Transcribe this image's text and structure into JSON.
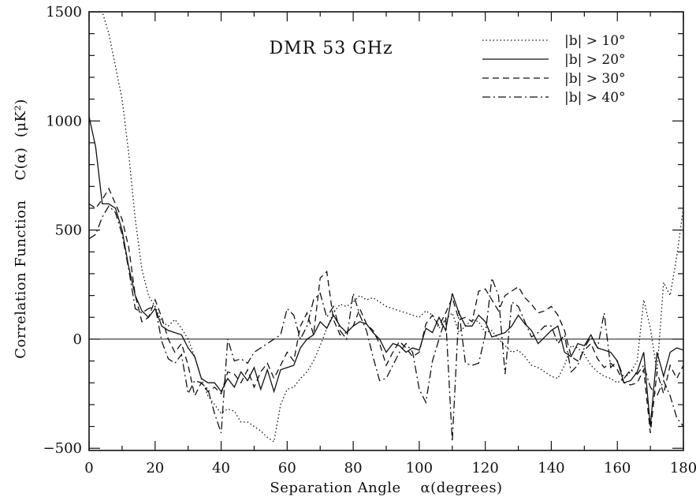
{
  "chart_data": {
    "type": "line",
    "title": "DMR 53 GHz",
    "xlabel": "Separation Angle    α(degrees)",
    "ylabel": "Correlation Function    C(α)  (μK²)",
    "xlim": [
      0,
      180
    ],
    "ylim": [
      -510,
      1500
    ],
    "xticks": [
      0,
      20,
      40,
      60,
      80,
      100,
      120,
      140,
      160,
      180
    ],
    "yticks": [
      -500,
      0,
      500,
      1000,
      1500
    ],
    "xtick_labels": [
      "0",
      "20",
      "40",
      "60",
      "80",
      "100",
      "120",
      "140",
      "160",
      "180"
    ],
    "ytick_labels": [
      "−500",
      "0",
      "500",
      "1000",
      "1500"
    ],
    "reference_line_y": 0,
    "grid": false,
    "legend_position": "top-right",
    "series": [
      {
        "name": "|b| >  10°",
        "dash": "dotted",
        "x": [
          2,
          4,
          6,
          8,
          10,
          12,
          14,
          16,
          18,
          20,
          22,
          24,
          26,
          28,
          30,
          32,
          34,
          36,
          38,
          40,
          42,
          44,
          46,
          48,
          50,
          52,
          54,
          56,
          58,
          60,
          62,
          64,
          66,
          68,
          70,
          72,
          74,
          76,
          78,
          80,
          82,
          84,
          86,
          88,
          90,
          92,
          94,
          96,
          98,
          100,
          102,
          104,
          106,
          108,
          110,
          112,
          114,
          116,
          118,
          120,
          122,
          124,
          126,
          128,
          130,
          132,
          134,
          136,
          138,
          140,
          142,
          144,
          146,
          148,
          150,
          152,
          154,
          156,
          158,
          160,
          162,
          164,
          166,
          168,
          170,
          172,
          174,
          176,
          178,
          180
        ],
        "y": [
          1650,
          1500,
          1400,
          1250,
          1100,
          850,
          550,
          320,
          200,
          150,
          80,
          60,
          90,
          50,
          0,
          -80,
          -180,
          -260,
          -300,
          -340,
          -320,
          -330,
          -380,
          -380,
          -400,
          -420,
          -450,
          -470,
          -300,
          -230,
          -220,
          -180,
          -150,
          -100,
          -30,
          50,
          120,
          160,
          150,
          170,
          200,
          180,
          190,
          170,
          150,
          140,
          130,
          120,
          110,
          100,
          130,
          110,
          50,
          90,
          120,
          30,
          60,
          90,
          80,
          30,
          40,
          0,
          -30,
          -60,
          -50,
          -80,
          -120,
          -130,
          -150,
          -170,
          -180,
          -120,
          -30,
          -40,
          -70,
          -120,
          -150,
          -170,
          -180,
          -200,
          -180,
          -150,
          -100,
          180,
          50,
          -150,
          260,
          200,
          380,
          600
        ]
      },
      {
        "name": "|b| >  20°",
        "dash": "solid",
        "x": [
          0,
          2,
          4,
          6,
          8,
          10,
          12,
          14,
          16,
          18,
          20,
          22,
          24,
          26,
          28,
          30,
          32,
          34,
          36,
          38,
          40,
          42,
          44,
          46,
          48,
          50,
          52,
          54,
          56,
          58,
          60,
          62,
          64,
          66,
          68,
          70,
          72,
          74,
          76,
          78,
          80,
          82,
          84,
          86,
          88,
          90,
          92,
          94,
          96,
          98,
          100,
          102,
          104,
          106,
          108,
          110,
          112,
          114,
          116,
          118,
          120,
          122,
          124,
          126,
          128,
          130,
          132,
          134,
          136,
          138,
          140,
          142,
          144,
          146,
          148,
          150,
          152,
          154,
          156,
          158,
          160,
          162,
          164,
          166,
          168,
          170,
          172,
          174,
          176,
          178,
          180
        ],
        "y": [
          1020,
          880,
          620,
          620,
          600,
          500,
          330,
          200,
          130,
          100,
          140,
          60,
          40,
          30,
          20,
          -40,
          -80,
          -180,
          -200,
          -200,
          -240,
          -180,
          -220,
          -150,
          -190,
          -130,
          -230,
          -140,
          -240,
          -140,
          -130,
          -120,
          -40,
          0,
          20,
          80,
          50,
          110,
          60,
          30,
          60,
          80,
          70,
          30,
          0,
          -60,
          -20,
          -30,
          -60,
          -40,
          -50,
          50,
          30,
          100,
          40,
          210,
          120,
          60,
          60,
          110,
          80,
          10,
          20,
          30,
          60,
          110,
          70,
          40,
          -20,
          10,
          40,
          60,
          -60,
          -80,
          -20,
          -30,
          20,
          -40,
          -50,
          -60,
          -100,
          -200,
          -190,
          -150,
          -60,
          -400,
          -60,
          -170,
          -60,
          -40,
          -50
        ]
      },
      {
        "name": "|b| >  30°",
        "dash": "dashed",
        "x": [
          0,
          2,
          4,
          6,
          8,
          10,
          12,
          14,
          16,
          18,
          20,
          22,
          24,
          26,
          28,
          30,
          32,
          34,
          36,
          38,
          40,
          42,
          44,
          46,
          48,
          50,
          52,
          54,
          56,
          58,
          60,
          62,
          64,
          66,
          68,
          70,
          72,
          74,
          76,
          78,
          80,
          82,
          84,
          86,
          88,
          90,
          92,
          94,
          96,
          98,
          100,
          102,
          104,
          106,
          108,
          110,
          112,
          114,
          116,
          118,
          120,
          122,
          124,
          126,
          128,
          130,
          132,
          134,
          136,
          138,
          140,
          142,
          144,
          146,
          148,
          150,
          152,
          154,
          156,
          158,
          160,
          162,
          164,
          166,
          168,
          170,
          172,
          174,
          176,
          178,
          180
        ],
        "y": [
          620,
          600,
          640,
          690,
          620,
          550,
          420,
          200,
          80,
          100,
          180,
          100,
          0,
          -60,
          -20,
          -120,
          -260,
          -200,
          -240,
          -220,
          -250,
          -150,
          -160,
          -200,
          -140,
          -220,
          -150,
          -110,
          -180,
          -120,
          -60,
          -100,
          60,
          120,
          20,
          280,
          310,
          90,
          20,
          30,
          60,
          140,
          70,
          40,
          -20,
          -120,
          -60,
          -10,
          -40,
          -80,
          -60,
          70,
          110,
          60,
          120,
          190,
          90,
          100,
          80,
          220,
          230,
          180,
          130,
          200,
          220,
          240,
          190,
          160,
          120,
          130,
          150,
          110,
          40,
          -80,
          -100,
          -50,
          -20,
          -90,
          -130,
          -110,
          -140,
          -200,
          -210,
          -200,
          -140,
          -430,
          -150,
          -250,
          -120,
          -180,
          -120
        ]
      },
      {
        "name": "|b| >  40°",
        "dash": "dashdot",
        "x": [
          0,
          2,
          4,
          6,
          8,
          10,
          12,
          14,
          16,
          18,
          20,
          22,
          24,
          26,
          28,
          30,
          32,
          34,
          36,
          38,
          40,
          42,
          44,
          46,
          48,
          50,
          52,
          54,
          56,
          58,
          60,
          62,
          64,
          66,
          68,
          70,
          72,
          74,
          76,
          78,
          80,
          82,
          84,
          86,
          88,
          90,
          92,
          94,
          96,
          98,
          100,
          102,
          104,
          106,
          108,
          110,
          112,
          114,
          116,
          118,
          120,
          122,
          124,
          126,
          128,
          130,
          132,
          134,
          136,
          138,
          140,
          142,
          144,
          146,
          148,
          150,
          152,
          154,
          156,
          158,
          160,
          162,
          164,
          166,
          168,
          170,
          172,
          174,
          176,
          178,
          180
        ],
        "y": [
          460,
          480,
          560,
          610,
          580,
          480,
          320,
          140,
          120,
          140,
          150,
          -10,
          -90,
          -110,
          -70,
          -250,
          -190,
          -200,
          -230,
          -340,
          -430,
          0,
          -100,
          -90,
          -110,
          -60,
          -40,
          -20,
          0,
          20,
          140,
          110,
          0,
          60,
          180,
          210,
          100,
          150,
          40,
          0,
          210,
          110,
          40,
          -80,
          -190,
          -180,
          -120,
          -60,
          -20,
          -60,
          -230,
          -290,
          -100,
          0,
          100,
          -470,
          130,
          -110,
          -120,
          -110,
          20,
          280,
          200,
          -160,
          170,
          150,
          80,
          10,
          30,
          60,
          60,
          -20,
          20,
          -150,
          -120,
          -40,
          10,
          -40,
          120,
          -130,
          -100,
          -180,
          -140,
          -160,
          -120,
          -220,
          -260,
          -190,
          -260,
          -360,
          -400
        ]
      }
    ]
  }
}
